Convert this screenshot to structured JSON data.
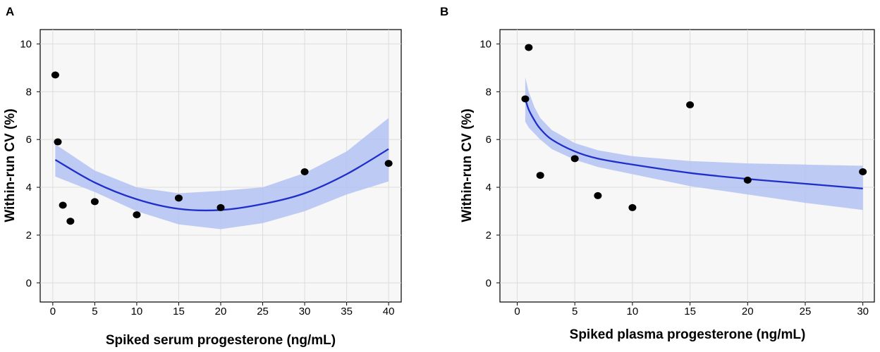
{
  "chart_data": [
    {
      "panel": "A",
      "type": "scatter",
      "xlabel": "Spiked serum progesterone (ng/mL)",
      "ylabel": "Within-run CV (%)",
      "xlim": [
        -1.5,
        41.5
      ],
      "ylim": [
        -0.8,
        10.6
      ],
      "xticks": [
        0,
        5,
        10,
        15,
        20,
        25,
        30,
        35,
        40
      ],
      "yticks": [
        0,
        2,
        4,
        6,
        8,
        10
      ],
      "grid": true,
      "points": [
        {
          "x": 0.3,
          "y": 8.7
        },
        {
          "x": 0.6,
          "y": 5.9
        },
        {
          "x": 1.2,
          "y": 3.25
        },
        {
          "x": 2.1,
          "y": 2.58
        },
        {
          "x": 5,
          "y": 3.4
        },
        {
          "x": 10,
          "y": 2.85
        },
        {
          "x": 15,
          "y": 3.55
        },
        {
          "x": 20,
          "y": 3.15
        },
        {
          "x": 30,
          "y": 4.65
        },
        {
          "x": 40,
          "y": 5.0
        }
      ],
      "fit": {
        "x": [
          0.3,
          5,
          10,
          15,
          20,
          25,
          30,
          35,
          40
        ],
        "y": [
          5.15,
          4.2,
          3.5,
          3.1,
          3.05,
          3.3,
          3.75,
          4.55,
          5.6
        ],
        "lower": [
          4.45,
          3.8,
          3.0,
          2.45,
          2.25,
          2.5,
          3.0,
          3.7,
          4.25
        ],
        "upper": [
          5.8,
          4.7,
          4.0,
          3.75,
          3.85,
          4.0,
          4.6,
          5.5,
          6.9
        ]
      },
      "colors": {
        "fit_line": "#1f2fc8",
        "band": "#b3c2f3",
        "point": "#000000"
      }
    },
    {
      "panel": "B",
      "type": "scatter",
      "xlabel": "Spiked plasma progesterone (ng/mL)",
      "ylabel": "Within-run CV (%)",
      "xlim": [
        -1.5,
        31
      ],
      "ylim": [
        -0.8,
        10.6
      ],
      "xticks": [
        0,
        5,
        10,
        15,
        20,
        25,
        30
      ],
      "yticks": [
        0,
        2,
        4,
        6,
        8,
        10
      ],
      "grid": true,
      "points": [
        {
          "x": 0.7,
          "y": 7.7
        },
        {
          "x": 1.0,
          "y": 9.85
        },
        {
          "x": 2.0,
          "y": 4.5
        },
        {
          "x": 5,
          "y": 5.2
        },
        {
          "x": 7,
          "y": 3.65
        },
        {
          "x": 10,
          "y": 3.15
        },
        {
          "x": 15,
          "y": 7.45
        },
        {
          "x": 20,
          "y": 4.3
        },
        {
          "x": 30,
          "y": 4.65
        }
      ],
      "fit": {
        "x": [
          0.7,
          1,
          1.5,
          2,
          3,
          5,
          7,
          10,
          15,
          20,
          25,
          30
        ],
        "y": [
          7.7,
          7.25,
          6.8,
          6.45,
          6.0,
          5.5,
          5.2,
          4.95,
          4.6,
          4.35,
          4.15,
          3.95
        ],
        "lower": [
          6.75,
          6.5,
          6.25,
          6.0,
          5.6,
          5.15,
          4.85,
          4.55,
          4.05,
          3.7,
          3.35,
          3.05
        ],
        "upper": [
          8.6,
          8.0,
          7.35,
          6.9,
          6.4,
          5.85,
          5.55,
          5.3,
          5.1,
          5.0,
          4.95,
          4.9
        ]
      },
      "colors": {
        "fit_line": "#1f2fc8",
        "band": "#b3c2f3",
        "point": "#000000"
      }
    }
  ]
}
